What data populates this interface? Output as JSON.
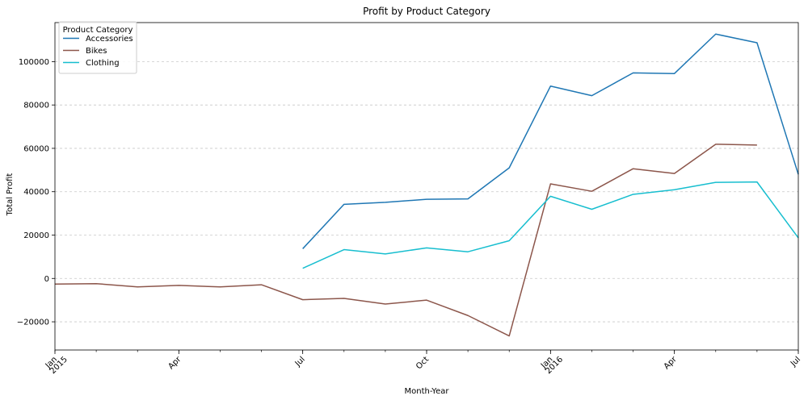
{
  "chart_data": {
    "type": "line",
    "title": "Profit by Product Category",
    "xlabel": "Month-Year",
    "ylabel": "Total Profit",
    "x": [
      "2015-01",
      "2015-02",
      "2015-03",
      "2015-04",
      "2015-05",
      "2015-06",
      "2015-07",
      "2015-08",
      "2015-09",
      "2015-10",
      "2015-11",
      "2015-12",
      "2016-01",
      "2016-02",
      "2016-03",
      "2016-04",
      "2016-05",
      "2016-06",
      "2016-07"
    ],
    "xlim": [
      "2015-01",
      "2016-07"
    ],
    "ylim": [
      -33000,
      118000
    ],
    "grid": "horizontal-dashed",
    "legend": {
      "title": "Product Category",
      "placement": "upper-left"
    },
    "series": [
      {
        "name": "Accessories",
        "color": "#1f77b4",
        "values": [
          null,
          null,
          null,
          null,
          null,
          null,
          13700,
          34200,
          35100,
          36500,
          36700,
          51000,
          88700,
          84300,
          94800,
          94500,
          112700,
          108700,
          48000
        ]
      },
      {
        "name": "Bikes",
        "color": "#8c564b",
        "values": [
          -2600,
          -2400,
          -3900,
          -3200,
          -3900,
          -2900,
          -9800,
          -9200,
          -11800,
          -10000,
          -17100,
          -26500,
          43600,
          40200,
          50600,
          48400,
          61900,
          61500,
          null
        ]
      },
      {
        "name": "Clothing",
        "color": "#17becf",
        "values": [
          null,
          null,
          null,
          null,
          null,
          null,
          4700,
          13300,
          11300,
          14100,
          12300,
          17400,
          37900,
          31900,
          38800,
          40900,
          44300,
          44500,
          18700
        ]
      }
    ],
    "y_ticks": [
      {
        "value": -20000,
        "label": "−20000"
      },
      {
        "value": 0,
        "label": "0"
      },
      {
        "value": 20000,
        "label": "20000"
      },
      {
        "value": 40000,
        "label": "40000"
      },
      {
        "value": 60000,
        "label": "60000"
      },
      {
        "value": 80000,
        "label": "80000"
      },
      {
        "value": 100000,
        "label": "100000"
      }
    ],
    "x_major_ticks": [
      {
        "x": "2015-01",
        "label": "Jan",
        "sublabel": "2015"
      },
      {
        "x": "2015-04",
        "label": "Apr",
        "sublabel": ""
      },
      {
        "x": "2015-07",
        "label": "Jul",
        "sublabel": ""
      },
      {
        "x": "2015-10",
        "label": "Oct",
        "sublabel": ""
      },
      {
        "x": "2016-01",
        "label": "Jan",
        "sublabel": "2016"
      },
      {
        "x": "2016-04",
        "label": "Apr",
        "sublabel": ""
      },
      {
        "x": "2016-07",
        "label": "Jul",
        "sublabel": ""
      }
    ]
  }
}
